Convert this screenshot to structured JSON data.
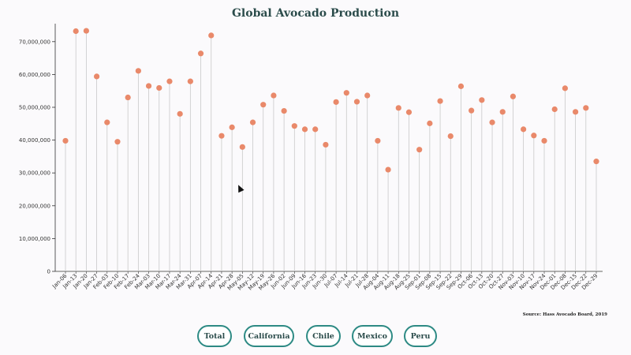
{
  "title": "Global Avocado Production",
  "source": "Source: Hass Avocado Board, 2019",
  "buttons": [
    "Total",
    "California",
    "Chile",
    "Mexico",
    "Peru"
  ],
  "colors": {
    "dot": "#e9896a",
    "stem": "#c9c9c9",
    "axis": "#333333",
    "button_border": "#2d8a84",
    "title": "#2b4c4b"
  },
  "chart_data": {
    "type": "scatter",
    "subtype": "lollipop",
    "ylim": [
      0,
      75000000
    ],
    "yticks": [
      0,
      10000000,
      20000000,
      30000000,
      40000000,
      50000000,
      60000000,
      70000000
    ],
    "ytick_labels": [
      "0",
      "10,000,000",
      "20,000,000",
      "30,000,000",
      "40,000,000",
      "50,000,000",
      "60,000,000",
      "70,000,000"
    ],
    "categories": [
      "Jan-06",
      "Jan-13",
      "Jan-20",
      "Jan-27",
      "Feb-03",
      "Feb-10",
      "Feb-17",
      "Feb-24",
      "Mar-03",
      "Mar-10",
      "Mar-17",
      "Mar-24",
      "Mar-31",
      "Apr-07",
      "Apr-14",
      "Apr-21",
      "Apr-28",
      "May-05",
      "May-12",
      "May-19",
      "May-26",
      "Jun-02",
      "Jun-09",
      "Jun-16",
      "Jun-23",
      "Jun-30",
      "Jul-07",
      "Jul-14",
      "Jul-21",
      "Jul-28",
      "Aug-04",
      "Aug-11",
      "Aug-18",
      "Aug-25",
      "Sep-01",
      "Sep-08",
      "Sep-15",
      "Sep-22",
      "Sep-29",
      "Oct-06",
      "Oct-13",
      "Oct-20",
      "Oct-27",
      "Nov-03",
      "Nov-10",
      "Nov-17",
      "Nov-24",
      "Dec-01",
      "Dec-08",
      "Dec-15",
      "Dec-22",
      "Dec-29"
    ],
    "values": [
      39800000,
      73200000,
      73300000,
      59400000,
      45400000,
      39500000,
      53000000,
      61100000,
      56500000,
      55900000,
      57900000,
      48000000,
      57900000,
      66400000,
      71900000,
      41300000,
      43900000,
      37900000,
      45400000,
      50800000,
      53600000,
      48900000,
      44300000,
      43300000,
      43300000,
      38600000,
      51600000,
      54400000,
      51700000,
      53600000,
      39800000,
      31000000,
      49800000,
      48500000,
      37100000,
      45100000,
      51900000,
      41200000,
      56400000,
      49000000,
      52200000,
      45400000,
      48600000,
      53300000,
      43300000,
      41400000,
      39800000,
      49400000,
      55800000,
      48600000,
      49800000,
      33500000
    ]
  }
}
